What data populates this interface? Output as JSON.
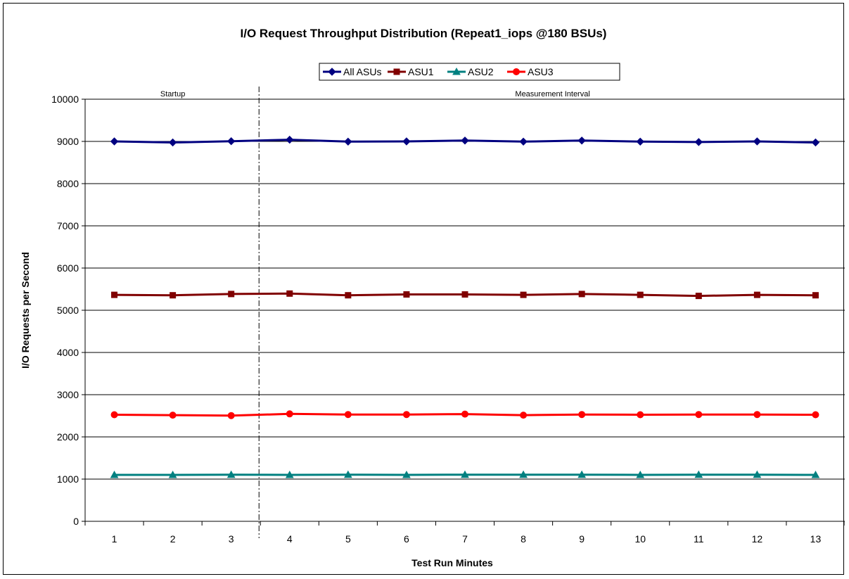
{
  "chart_data": {
    "type": "line",
    "title": "I/O Request Throughput Distribution (Repeat1_iops @180 BSUs)",
    "xlabel": "Test Run Minutes",
    "ylabel": "I/O Requests per Second",
    "categories": [
      "1",
      "2",
      "3",
      "4",
      "5",
      "6",
      "7",
      "8",
      "9",
      "10",
      "11",
      "12",
      "13"
    ],
    "ylim": [
      0,
      10000
    ],
    "yticks": [
      "0",
      "1000",
      "2000",
      "3000",
      "4000",
      "5000",
      "6000",
      "7000",
      "8000",
      "9000",
      "10000"
    ],
    "grid": "horizontal major gridlines",
    "legend_position": "top",
    "phases": [
      {
        "label": "Startup"
      },
      {
        "label": "Measurement Interval"
      }
    ],
    "series": [
      {
        "name": "All ASUs",
        "color": "#000080",
        "marker": "diamond",
        "values": [
          9000,
          8975,
          9005,
          9040,
          8995,
          9000,
          9020,
          8995,
          9020,
          8995,
          8985,
          9000,
          8975
        ]
      },
      {
        "name": "ASU1",
        "color": "#800000",
        "marker": "square",
        "values": [
          5365,
          5355,
          5385,
          5395,
          5355,
          5375,
          5375,
          5365,
          5385,
          5365,
          5340,
          5365,
          5355
        ]
      },
      {
        "name": "ASU2",
        "color": "#008080",
        "marker": "triangle",
        "values": [
          1100,
          1100,
          1105,
          1100,
          1105,
          1100,
          1105,
          1105,
          1105,
          1100,
          1105,
          1105,
          1100
        ]
      },
      {
        "name": "ASU3",
        "color": "#FF0000",
        "marker": "circle",
        "values": [
          2525,
          2515,
          2505,
          2545,
          2530,
          2530,
          2540,
          2515,
          2530,
          2525,
          2530,
          2530,
          2525
        ]
      }
    ]
  }
}
